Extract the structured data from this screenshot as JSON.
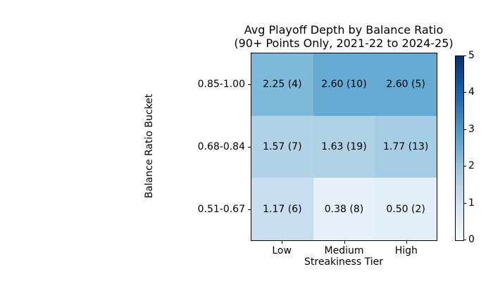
{
  "chart_data": {
    "type": "heatmap",
    "title_lines": [
      "Avg Playoff Depth by Balance Ratio",
      "(90+ Points Only, 2021-22 to 2024-25)"
    ],
    "xlabel": "Streakiness Tier",
    "ylabel": "Balance Ratio Bucket",
    "x_categories": [
      "Low",
      "Medium",
      "High"
    ],
    "y_categories": [
      "0.85-1.00",
      "0.68-0.84",
      "0.51-0.67"
    ],
    "values": [
      [
        2.25,
        2.6,
        2.6
      ],
      [
        1.57,
        1.63,
        1.77
      ],
      [
        1.17,
        0.38,
        0.5
      ]
    ],
    "counts": [
      [
        4,
        10,
        5
      ],
      [
        7,
        19,
        13
      ],
      [
        6,
        8,
        2
      ]
    ],
    "cell_labels": [
      [
        "2.25 (4)",
        "2.60 (10)",
        "2.60 (5)"
      ],
      [
        "1.57 (7)",
        "1.63 (19)",
        "1.77 (13)"
      ],
      [
        "1.17 (6)",
        "0.38 (8)",
        "0.50 (2)"
      ]
    ],
    "cell_colors": [
      [
        "#7fb9da",
        "#64aad3",
        "#64aad3"
      ],
      [
        "#b2d2e8",
        "#aed1e6",
        "#a5cde3"
      ],
      [
        "#c9ddf0",
        "#e8f1fa",
        "#e3eef9"
      ]
    ],
    "colormap": "Blues",
    "colorbar": {
      "min": 0,
      "max": 5,
      "ticks": [
        "0",
        "1",
        "2",
        "3",
        "4",
        "5"
      ]
    },
    "grid": false,
    "legend_position": "right-colorbar"
  },
  "colors": {
    "background": "#ffffff",
    "axis": "#000000",
    "cell_text": "#000000",
    "colorbar_low": "#f7fbff",
    "colorbar_high": "#08306b"
  }
}
